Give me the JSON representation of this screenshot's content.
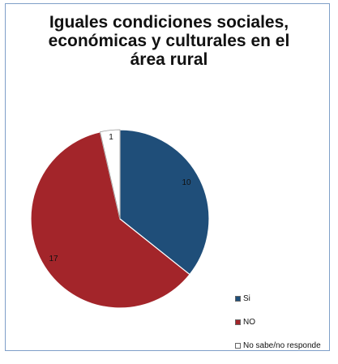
{
  "chart_data": {
    "type": "pie",
    "title_lines": [
      "Iguales condiciones sociales,",
      "económicas y culturales en el",
      "área rural"
    ],
    "categories": [
      "Si",
      "NO",
      "No sabe/no responde"
    ],
    "values": [
      10,
      17,
      1
    ],
    "data_labels": [
      "10",
      "17",
      "1"
    ],
    "colors": [
      "#1f4e79",
      "#a3252a",
      "#ffffff"
    ],
    "start_angle_deg": 0,
    "direction": "clockwise",
    "legend_position": "bottom-right"
  }
}
